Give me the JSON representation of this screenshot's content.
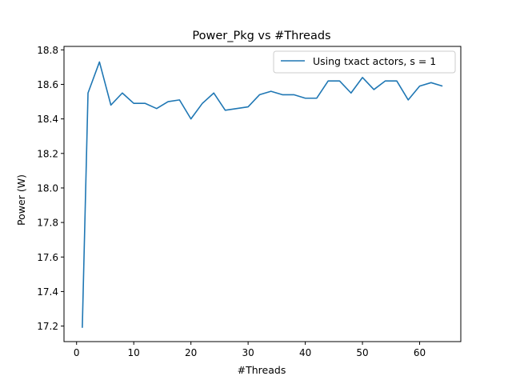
{
  "chart_data": {
    "type": "line",
    "title": "Power_Pkg vs #Threads",
    "xlabel": "#Threads",
    "ylabel": "Power (W)",
    "xlim": [
      -2.2,
      67.2
    ],
    "ylim": [
      17.11,
      18.82
    ],
    "x_ticks": [
      0,
      10,
      20,
      30,
      40,
      50,
      60
    ],
    "y_ticks": [
      17.2,
      17.4,
      17.6,
      17.8,
      18.0,
      18.2,
      18.4,
      18.6,
      18.8
    ],
    "x_tick_labels": [
      "0",
      "10",
      "20",
      "30",
      "40",
      "50",
      "60"
    ],
    "y_tick_labels": [
      "17.2",
      "17.4",
      "17.6",
      "17.8",
      "18.0",
      "18.2",
      "18.4",
      "18.6",
      "18.8"
    ],
    "legend_position": "upper-right",
    "grid": false,
    "series": [
      {
        "name": "Using txact actors, s = 1",
        "color": "#1f77b4",
        "x": [
          1,
          2,
          4,
          6,
          8,
          10,
          12,
          14,
          16,
          18,
          20,
          22,
          24,
          26,
          28,
          30,
          32,
          34,
          36,
          38,
          40,
          42,
          44,
          46,
          48,
          50,
          52,
          54,
          56,
          58,
          60,
          62,
          64
        ],
        "y": [
          17.19,
          18.55,
          18.73,
          18.48,
          18.55,
          18.49,
          18.49,
          18.46,
          18.5,
          18.51,
          18.4,
          18.49,
          18.55,
          18.45,
          18.46,
          18.47,
          18.54,
          18.56,
          18.54,
          18.54,
          18.52,
          18.52,
          18.62,
          18.62,
          18.55,
          18.64,
          18.57,
          18.62,
          18.62,
          18.51,
          18.59,
          18.61,
          18.59
        ]
      }
    ]
  }
}
